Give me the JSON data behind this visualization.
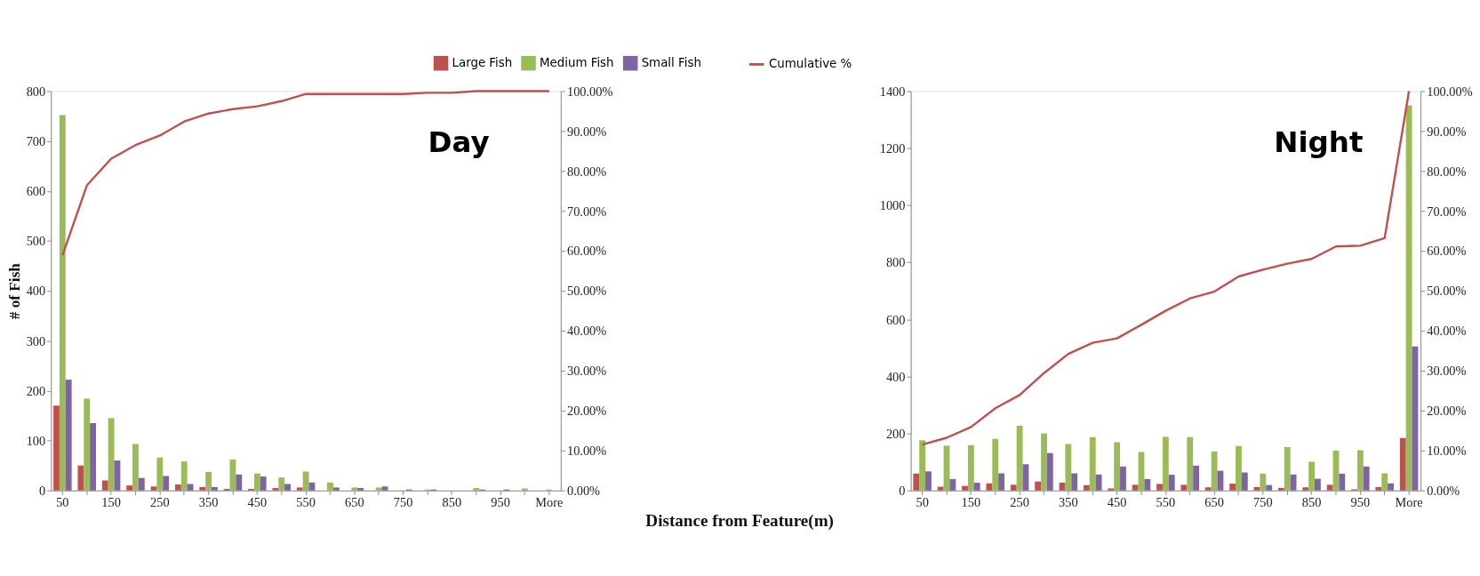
{
  "chart_data": [
    {
      "type": "bar",
      "ylabel": "# of Fish",
      "xlabel": "Distance from Feature(m)",
      "annotations": [
        "Day"
      ],
      "legend": "top",
      "categories": [
        "50",
        null,
        "150",
        null,
        "250",
        null,
        "350",
        null,
        "450",
        null,
        "550",
        null,
        "650",
        null,
        "750",
        null,
        "850",
        null,
        "950",
        null,
        "More"
      ],
      "series": [
        {
          "name": "Large Fish",
          "color": "#c0504d",
          "values": [
            170,
            50,
            20,
            10,
            8,
            12,
            7,
            3,
            3,
            5,
            6,
            0,
            0,
            0,
            0,
            0,
            0,
            0,
            0,
            0,
            0
          ]
        },
        {
          "name": "Medium Fish",
          "color": "#9bbb59",
          "values": [
            752,
            184,
            145,
            93,
            66,
            58,
            37,
            62,
            34,
            26,
            38,
            16,
            6,
            6,
            0,
            2,
            0,
            5,
            0,
            4,
            2
          ]
        },
        {
          "name": "Small Fish",
          "color": "#8064a2",
          "values": [
            222,
            135,
            60,
            25,
            29,
            13,
            7,
            32,
            28,
            13,
            16,
            6,
            5,
            8,
            2,
            2,
            0,
            2,
            2,
            0,
            null
          ]
        },
        {
          "name": "Cumulative %",
          "type": "line",
          "axis": "y2",
          "color": "#c0504d",
          "values": [
            58.9,
            76.4,
            83.1,
            86.5,
            88.9,
            92.4,
            94.4,
            95.5,
            96.2,
            97.5,
            99.3,
            99.3,
            99.3,
            99.3,
            99.3,
            99.6,
            99.6,
            100,
            100,
            100,
            100
          ]
        }
      ],
      "ylim": [
        0,
        800
      ],
      "yticks": [
        0,
        100,
        200,
        300,
        400,
        500,
        600,
        700,
        800
      ],
      "y2lim": [
        0,
        100
      ],
      "y2ticks": [
        {
          "value": 0,
          "label": "0.00%"
        },
        {
          "value": 10,
          "label": "10.00%"
        },
        {
          "value": 20,
          "label": "20.00%"
        },
        {
          "value": 30,
          "label": "30.00%"
        },
        {
          "value": 40,
          "label": "40.00%"
        },
        {
          "value": 50,
          "label": "50.00%"
        },
        {
          "value": 60,
          "label": "60.00%"
        },
        {
          "value": 70,
          "label": "70.00%"
        },
        {
          "value": 80,
          "label": "80.00%"
        },
        {
          "value": 90,
          "label": "90.00%"
        },
        {
          "value": 100,
          "label": "100.00%"
        }
      ]
    },
    {
      "type": "bar",
      "annotations": [
        "Night"
      ],
      "categories": [
        "50",
        null,
        "150",
        null,
        "250",
        null,
        "350",
        null,
        "450",
        null,
        "550",
        null,
        "650",
        null,
        "750",
        null,
        "850",
        null,
        "950",
        null,
        "More"
      ],
      "series": [
        {
          "name": "Large Fish",
          "color": "#c0504d",
          "values": [
            59,
            13,
            16,
            25,
            20,
            31,
            27,
            19,
            7,
            20,
            23,
            20,
            11,
            24,
            12,
            9,
            11,
            20,
            4,
            12,
            184
          ]
        },
        {
          "name": "Medium Fish",
          "color": "#9bbb59",
          "values": [
            176,
            157,
            159,
            181,
            227,
            200,
            163,
            187,
            169,
            135,
            188,
            187,
            137,
            156,
            59,
            152,
            101,
            140,
            141,
            60,
            1350
          ]
        },
        {
          "name": "Small Fish",
          "color": "#8064a2",
          "values": [
            67,
            40,
            27,
            60,
            92,
            131,
            60,
            56,
            84,
            40,
            55,
            87,
            69,
            63,
            19,
            56,
            41,
            59,
            84,
            25,
            505
          ]
        },
        {
          "name": "Cumulative %",
          "type": "line",
          "axis": "y2",
          "color": "#c0504d",
          "values": [
            11.5,
            13.2,
            15.9,
            20.6,
            23.9,
            29.4,
            34.2,
            37.0,
            38.1,
            41.5,
            45.0,
            48.1,
            49.8,
            53.6,
            55.3,
            56.8,
            58.0,
            61.1,
            61.3,
            63.2,
            100
          ]
        }
      ],
      "ylim": [
        0,
        1400
      ],
      "yticks": [
        0,
        200,
        400,
        600,
        800,
        1000,
        1200,
        1400
      ],
      "y2lim": [
        0,
        100
      ],
      "y2ticks": [
        {
          "value": 0,
          "label": "0.00%"
        },
        {
          "value": 10,
          "label": "10.00%"
        },
        {
          "value": 20,
          "label": "20.00%"
        },
        {
          "value": 30,
          "label": "30.00%"
        },
        {
          "value": 40,
          "label": "40.00%"
        },
        {
          "value": 50,
          "label": "50.00%"
        },
        {
          "value": 60,
          "label": "60.00%"
        },
        {
          "value": 70,
          "label": "70.00%"
        },
        {
          "value": 80,
          "label": "80.00%"
        },
        {
          "value": 90,
          "label": "90.00%"
        },
        {
          "value": 100,
          "label": "100.00%"
        }
      ]
    }
  ]
}
